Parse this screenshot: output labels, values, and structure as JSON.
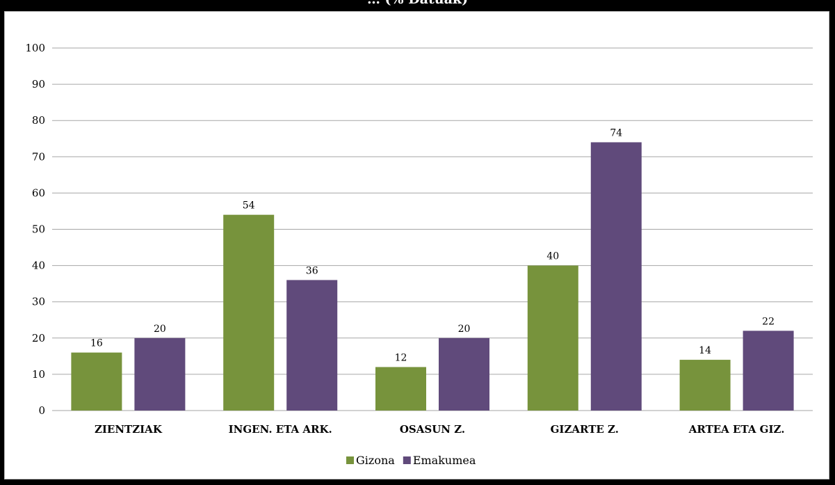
{
  "chart_data": {
    "type": "bar",
    "title": "… (% Datuak)",
    "categories": [
      "ZIENTZIAK",
      "INGEN. ETA ARK.",
      "OSASUN Z.",
      "GIZARTE Z.",
      "ARTEA ETA GIZ."
    ],
    "series": [
      {
        "name": "Gizona",
        "color": "#77933c",
        "values": [
          16,
          54,
          12,
          40,
          14
        ]
      },
      {
        "name": "Emakumea",
        "color": "#604a7b",
        "values": [
          20,
          36,
          20,
          74,
          22
        ]
      }
    ],
    "yticks": [
      "0",
      "10",
      "20",
      "30",
      "40",
      "50",
      "60",
      "70",
      "80",
      "90",
      "100"
    ],
    "ylim": [
      0,
      100
    ],
    "grid": true,
    "legend_position": "bottom",
    "xlabel": "",
    "ylabel": ""
  },
  "colors": {
    "background": "#000000",
    "panel": "#ffffff",
    "gridline": "#a6a6a6"
  }
}
